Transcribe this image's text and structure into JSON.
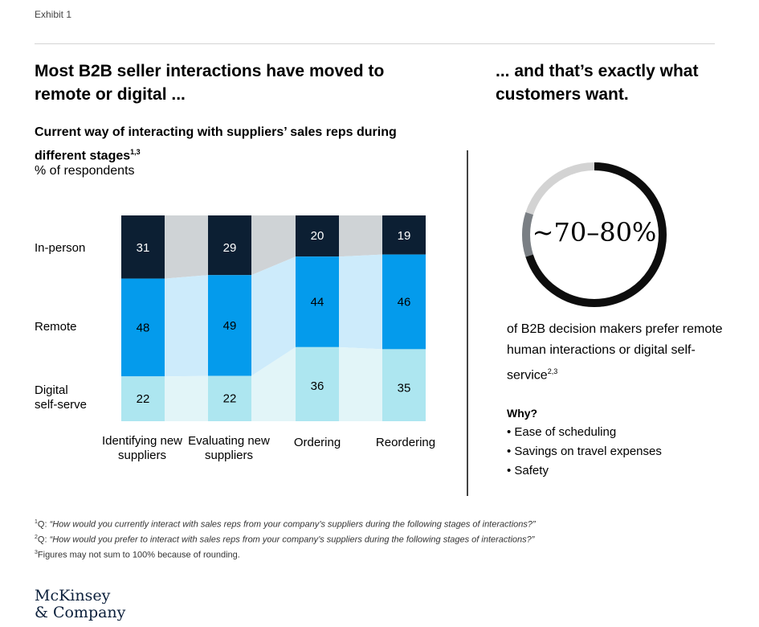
{
  "exhibit_label": "Exhibit 1",
  "left_headline": "Most B2B seller interactions have moved to remote or digital ...",
  "right_headline": "... and that’s exactly what customers want.",
  "chart_subtitle": "Current way of interacting with suppliers’ sales reps during different stages",
  "chart_subtitle_sup": "1,3",
  "chart_unit": "% of respondents",
  "chart_data": {
    "type": "bar",
    "stacked": true,
    "categories": [
      "Identifying new suppliers",
      "Evaluating new suppliers",
      "Ordering",
      "Reordering"
    ],
    "series": [
      {
        "name": "In-person",
        "values": [
          31,
          29,
          20,
          19
        ],
        "color": "#0c1f33"
      },
      {
        "name": "Remote",
        "values": [
          48,
          49,
          44,
          46
        ],
        "color": "#049bec"
      },
      {
        "name": "Digital self-serve",
        "values": [
          22,
          22,
          36,
          35
        ],
        "color": "#ade6f0"
      }
    ],
    "row_labels": [
      "In-person",
      "Remote",
      "Digital\nself-serve"
    ],
    "connector_colors": [
      "#cfd3d6",
      "#cdebfb",
      "#e2f5f8"
    ],
    "value_label_colors": [
      "#ffffff",
      "#000000",
      "#000000"
    ]
  },
  "donut": {
    "value_text": "~70–80%",
    "description": "of B2B decision makers prefer remote human interactions or digital self-service",
    "description_sup": "2,3",
    "colors": {
      "black": "#0d0d0d",
      "gray": "#7a7f84",
      "light": "#d3d3d3"
    }
  },
  "why": {
    "title": "Why?",
    "items": [
      "• Ease of scheduling",
      "• Savings on travel expenses",
      "• Safety"
    ]
  },
  "footnotes": [
    {
      "sup": "1",
      "prefix": "Q: ",
      "text": "“How would you currently interact with sales reps from your company’s suppliers during the following stages of interactions?”"
    },
    {
      "sup": "2",
      "prefix": "Q: ",
      "text": "“How would you prefer to interact with sales reps from your company’s suppliers during the following stages of interactions?”"
    },
    {
      "sup": "3",
      "prefix": "",
      "text": "Figures may not sum to 100% because of rounding."
    }
  ],
  "logo": {
    "line1": "McKinsey",
    "line2": "& Company"
  }
}
